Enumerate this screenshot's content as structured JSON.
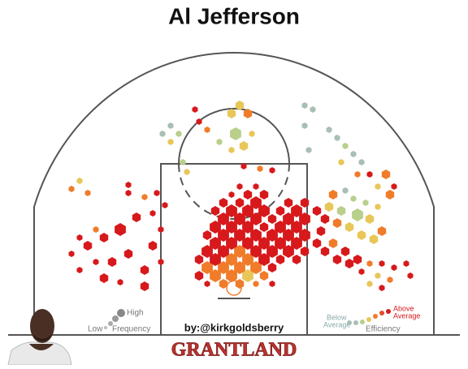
{
  "chart_data": {
    "type": "hexbin",
    "title": "Al Jefferson",
    "xlim": [
      -24.6,
      24.6
    ],
    "ylim": [
      0,
      34
    ],
    "efficiency_colors": {
      "2": "#d7191c",
      "1": "#f07c2a",
      "0": "#e8c658",
      "-1": "#b9cf8a",
      "-2": "#a8bfb4"
    },
    "size_radius": {
      "1": 4,
      "2": 6,
      "3": 8
    },
    "hexes": [
      [
        -3.3,
        6.3,
        1,
        2
      ],
      [
        -1.3,
        6.3,
        2,
        1
      ],
      [
        0.7,
        6.3,
        2,
        1
      ],
      [
        2.7,
        6.3,
        1,
        1
      ],
      [
        4.7,
        6.3,
        1,
        2
      ],
      [
        -4.3,
        7.3,
        2,
        2
      ],
      [
        -2.3,
        7.3,
        3,
        1
      ],
      [
        -0.3,
        7.3,
        3,
        1
      ],
      [
        1.7,
        7.3,
        3,
        0
      ],
      [
        3.7,
        7.3,
        2,
        1
      ],
      [
        -3.3,
        8.3,
        3,
        1
      ],
      [
        -1.3,
        8.3,
        3,
        1
      ],
      [
        0.7,
        8.3,
        3,
        1
      ],
      [
        2.7,
        8.3,
        3,
        1
      ],
      [
        4.7,
        8.3,
        2,
        2
      ],
      [
        -4.3,
        9.3,
        2,
        2
      ],
      [
        -2.3,
        9.3,
        3,
        2
      ],
      [
        -0.3,
        9.3,
        3,
        1
      ],
      [
        1.7,
        9.3,
        3,
        1
      ],
      [
        3.7,
        9.3,
        3,
        2
      ],
      [
        5.7,
        9.3,
        2,
        2
      ],
      [
        7.7,
        9.3,
        2,
        2
      ],
      [
        -3.3,
        10.3,
        3,
        2
      ],
      [
        -1.3,
        10.3,
        3,
        2
      ],
      [
        0.7,
        10.3,
        3,
        1
      ],
      [
        2.7,
        10.3,
        3,
        2
      ],
      [
        4.7,
        10.3,
        3,
        2
      ],
      [
        6.7,
        10.3,
        3,
        2
      ],
      [
        8.7,
        10.3,
        2,
        2
      ],
      [
        -2.3,
        11.3,
        3,
        2
      ],
      [
        -0.3,
        11.3,
        3,
        2
      ],
      [
        1.7,
        11.3,
        3,
        2
      ],
      [
        3.7,
        11.3,
        3,
        2
      ],
      [
        5.7,
        11.3,
        3,
        2
      ],
      [
        7.7,
        11.3,
        3,
        2
      ],
      [
        -3.3,
        12.3,
        2,
        2
      ],
      [
        -1.3,
        12.3,
        3,
        2
      ],
      [
        0.7,
        12.3,
        3,
        2
      ],
      [
        2.7,
        12.3,
        3,
        2
      ],
      [
        4.7,
        12.3,
        3,
        2
      ],
      [
        6.7,
        12.3,
        3,
        2
      ],
      [
        8.7,
        12.3,
        3,
        2
      ],
      [
        -2.3,
        13.3,
        3,
        2
      ],
      [
        -0.3,
        13.3,
        3,
        2
      ],
      [
        1.7,
        13.3,
        3,
        2
      ],
      [
        3.7,
        13.3,
        2,
        2
      ],
      [
        5.7,
        13.3,
        3,
        2
      ],
      [
        7.7,
        13.3,
        3,
        2
      ],
      [
        -1.3,
        14.3,
        3,
        2
      ],
      [
        0.7,
        14.3,
        3,
        2
      ],
      [
        2.7,
        14.3,
        3,
        2
      ],
      [
        4.7,
        14.3,
        2,
        2
      ],
      [
        6.7,
        14.3,
        3,
        2
      ],
      [
        8.7,
        14.3,
        3,
        2
      ],
      [
        -2.3,
        15.3,
        2,
        2
      ],
      [
        -0.3,
        15.3,
        3,
        2
      ],
      [
        1.7,
        15.3,
        3,
        2
      ],
      [
        3.7,
        15.3,
        3,
        2
      ],
      [
        5.7,
        15.3,
        2,
        2
      ],
      [
        7.7,
        15.3,
        3,
        2
      ],
      [
        -1.3,
        16.3,
        2,
        2
      ],
      [
        0.7,
        16.3,
        2,
        2
      ],
      [
        2.7,
        16.3,
        3,
        2
      ],
      [
        6.7,
        16.3,
        2,
        2
      ],
      [
        8.7,
        16.3,
        2,
        2
      ],
      [
        -0.3,
        17.3,
        1,
        2
      ],
      [
        1.7,
        17.3,
        2,
        2
      ],
      [
        3.7,
        17.3,
        2,
        2
      ],
      [
        0.7,
        18.3,
        1,
        2
      ],
      [
        2.7,
        18.3,
        1,
        2
      ],
      [
        -19,
        8,
        1,
        2
      ],
      [
        -17,
        9,
        1,
        2
      ],
      [
        -20,
        10,
        1,
        2
      ],
      [
        -18,
        11,
        2,
        2
      ],
      [
        -16,
        12,
        2,
        2
      ],
      [
        -14,
        13,
        3,
        2
      ],
      [
        -12,
        14.5,
        2,
        2
      ],
      [
        -13,
        10,
        2,
        2
      ],
      [
        -15,
        9,
        2,
        2
      ],
      [
        -17,
        13,
        1,
        1
      ],
      [
        -19,
        12,
        1,
        2
      ],
      [
        -16,
        7,
        2,
        2
      ],
      [
        -14,
        6.5,
        1,
        2
      ],
      [
        -11,
        8,
        2,
        2
      ],
      [
        -10,
        11,
        2,
        2
      ],
      [
        -11,
        6,
        2,
        2
      ],
      [
        -10,
        15,
        1,
        2
      ],
      [
        -9,
        13,
        1,
        2
      ],
      [
        -9,
        9,
        1,
        2
      ],
      [
        -8.5,
        16,
        1,
        2
      ],
      [
        -9.5,
        17.5,
        1,
        2
      ],
      [
        -11,
        17,
        1,
        1
      ],
      [
        -13,
        17.5,
        1,
        2
      ],
      [
        -19,
        19,
        1,
        0
      ],
      [
        -20,
        18,
        1,
        1
      ],
      [
        -18,
        17.5,
        1,
        1
      ],
      [
        -13,
        18.5,
        1,
        2
      ],
      [
        -4.8,
        27.8,
        1,
        2
      ],
      [
        -4.3,
        26.3,
        1,
        2
      ],
      [
        -3.3,
        25.3,
        1,
        1
      ],
      [
        -7.8,
        25.8,
        1,
        -2
      ],
      [
        -8.8,
        24.8,
        1,
        -2
      ],
      [
        -7.8,
        23.8,
        1,
        0
      ],
      [
        -6.8,
        24.8,
        1,
        -1
      ],
      [
        -6.3,
        21.3,
        1,
        -1
      ],
      [
        -5.8,
        20.1,
        1,
        0
      ],
      [
        0.7,
        28.3,
        2,
        0
      ],
      [
        -0.3,
        27.3,
        2,
        0
      ],
      [
        1.7,
        27.3,
        2,
        1
      ],
      [
        0.2,
        24.8,
        3,
        -1
      ],
      [
        1.2,
        23.3,
        2,
        0
      ],
      [
        -0.3,
        22.8,
        1,
        0
      ],
      [
        -1.8,
        23.8,
        1,
        -1
      ],
      [
        2.2,
        24.8,
        1,
        0
      ],
      [
        1.2,
        20.8,
        1,
        2
      ],
      [
        3.2,
        20.5,
        1,
        1
      ],
      [
        4.7,
        20.3,
        1,
        2
      ],
      [
        8.7,
        28.3,
        1,
        -2
      ],
      [
        9.7,
        27.8,
        1,
        -2
      ],
      [
        8.7,
        25.8,
        1,
        -2
      ],
      [
        9.2,
        22.8,
        1,
        -2
      ],
      [
        11.7,
        25.3,
        1,
        -2
      ],
      [
        12.7,
        24.3,
        1,
        -2
      ],
      [
        13.7,
        23.3,
        1,
        -1
      ],
      [
        14.7,
        22.3,
        1,
        -2
      ],
      [
        15.7,
        21.3,
        1,
        -2
      ],
      [
        13.2,
        21.3,
        1,
        0
      ],
      [
        15.2,
        19.8,
        1,
        1
      ],
      [
        16.7,
        19.8,
        1,
        2
      ],
      [
        17.7,
        18.3,
        1,
        0
      ],
      [
        18.7,
        19.8,
        2,
        1
      ],
      [
        19.7,
        18.3,
        1,
        2
      ],
      [
        19.2,
        17.3,
        2,
        1
      ],
      [
        17.7,
        15.8,
        1,
        0
      ],
      [
        16.2,
        16.3,
        1,
        -1
      ],
      [
        14.7,
        16.8,
        1,
        -1
      ],
      [
        13.7,
        17.8,
        1,
        -2
      ],
      [
        12.2,
        17.3,
        2,
        1
      ],
      [
        11.7,
        15.8,
        2,
        0
      ],
      [
        13.2,
        15.3,
        2,
        -1
      ],
      [
        15.2,
        14.8,
        3,
        -1
      ],
      [
        16.7,
        14.3,
        2,
        0
      ],
      [
        18.2,
        12.8,
        2,
        1
      ],
      [
        17.2,
        11.8,
        2,
        0
      ],
      [
        15.7,
        12.3,
        2,
        0
      ],
      [
        14.2,
        13.3,
        2,
        0
      ],
      [
        12.7,
        13.8,
        2,
        1
      ],
      [
        11.2,
        14.3,
        2,
        2
      ],
      [
        10.7,
        12.8,
        2,
        2
      ],
      [
        12.2,
        11.3,
        2,
        1
      ],
      [
        13.7,
        10.3,
        2,
        2
      ],
      [
        15.2,
        9.3,
        2,
        2
      ],
      [
        16.7,
        8.8,
        1,
        1
      ],
      [
        18.2,
        8.8,
        1,
        2
      ],
      [
        19.7,
        8.3,
        1,
        2
      ],
      [
        21.2,
        8.8,
        1,
        2
      ],
      [
        21.7,
        7.3,
        1,
        2
      ],
      [
        19.2,
        6.8,
        1,
        1
      ],
      [
        17.7,
        7.3,
        1,
        0
      ],
      [
        15.7,
        7.8,
        1,
        2
      ],
      [
        14.2,
        8.8,
        2,
        2
      ],
      [
        12.7,
        9.3,
        2,
        2
      ],
      [
        11.2,
        10.3,
        2,
        2
      ],
      [
        10.2,
        11.3,
        2,
        2
      ],
      [
        10.2,
        15.3,
        2,
        2
      ],
      [
        16.7,
        6.3,
        1,
        0
      ],
      [
        18.2,
        5.8,
        1,
        2
      ]
    ],
    "legend": {
      "high": "High",
      "low": "Low",
      "frequency": "Frequency",
      "below": "Below",
      "average_below": "Average",
      "above": "Above",
      "average_above": "Average",
      "efficiency": "Efficiency"
    },
    "credit": "by:@kirkgoldsberry",
    "brand": "GRANTLAND"
  }
}
